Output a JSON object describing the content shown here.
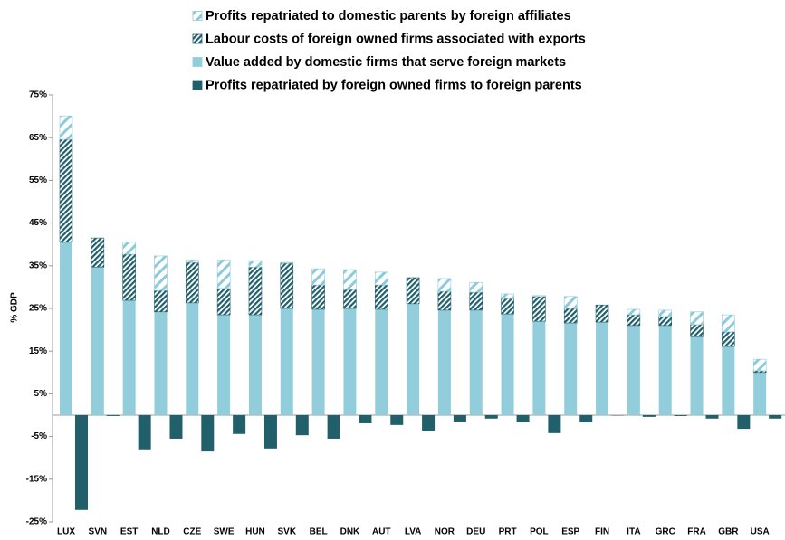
{
  "chart_data": {
    "type": "stacked-bar",
    "y_label": "% GDP",
    "categories": [
      "LUX",
      "SVN",
      "EST",
      "NLD",
      "CZE",
      "SWE",
      "HUN",
      "SVK",
      "BEL",
      "DNK",
      "AUT",
      "LVA",
      "NOR",
      "DEU",
      "PRT",
      "POL",
      "ESP",
      "FIN",
      "ITA",
      "GRC",
      "FRA",
      "GBR",
      "USA"
    ],
    "series": [
      {
        "name": "Profits repatriated to domestic parents by foreign affiliates",
        "color": "#8ccbdb",
        "hatch": "sparse",
        "values": [
          5.5,
          0,
          2.8,
          8.1,
          0.6,
          6.7,
          1.5,
          0.2,
          3.8,
          4.7,
          3.0,
          0,
          3.0,
          2.3,
          1.1,
          0.2,
          2.8,
          0,
          1.3,
          1.5,
          3.0,
          4.0,
          2.7
        ]
      },
      {
        "name": "Labour costs of foreign owned firms associated with exports",
        "color": "#215f6b",
        "hatch": "dense",
        "values": [
          24.1,
          6.8,
          10.8,
          5.0,
          9.5,
          6.2,
          11.2,
          10.6,
          5.7,
          4.4,
          5.7,
          6.1,
          4.4,
          4.2,
          3.6,
          5.8,
          3.4,
          4.0,
          2.5,
          2.1,
          2.8,
          3.4,
          0.4
        ]
      },
      {
        "name": "Value added by domestic firms that serve foreign markets",
        "color": "#92cddc",
        "hatch": null,
        "values": [
          40.5,
          34.7,
          26.9,
          24.2,
          26.3,
          23.5,
          23.5,
          25.0,
          24.8,
          25.0,
          24.8,
          26.1,
          24.6,
          24.6,
          23.7,
          22.0,
          21.6,
          21.8,
          21.0,
          21.0,
          18.4,
          16.1,
          10.0
        ]
      },
      {
        "name": "Profits repatriated by foreign owned firms to foreign parents",
        "color": "#215f6b",
        "hatch": null,
        "values": [
          -22.2,
          -0.2,
          -8.0,
          -5.5,
          -8.5,
          -4.4,
          -7.8,
          -4.7,
          -5.5,
          -1.9,
          -2.3,
          -3.6,
          -1.5,
          -0.8,
          -1.7,
          -4.2,
          -1.7,
          -0.1,
          -0.4,
          -0.2,
          -0.8,
          -3.2,
          -0.8
        ]
      }
    ],
    "ylim": [
      -25,
      75
    ],
    "yticks": [
      {
        "value": -25,
        "label": "-25%"
      },
      {
        "value": -15,
        "label": "-15%"
      },
      {
        "value": -5,
        "label": "-5%"
      },
      {
        "value": 5,
        "label": "5%"
      },
      {
        "value": 15,
        "label": "15%"
      },
      {
        "value": 25,
        "label": "25%"
      },
      {
        "value": 35,
        "label": "35%"
      },
      {
        "value": 45,
        "label": "45%"
      },
      {
        "value": 55,
        "label": "55%"
      },
      {
        "value": 65,
        "label": "65%"
      },
      {
        "value": 75,
        "label": "75%"
      }
    ],
    "grid": false
  }
}
